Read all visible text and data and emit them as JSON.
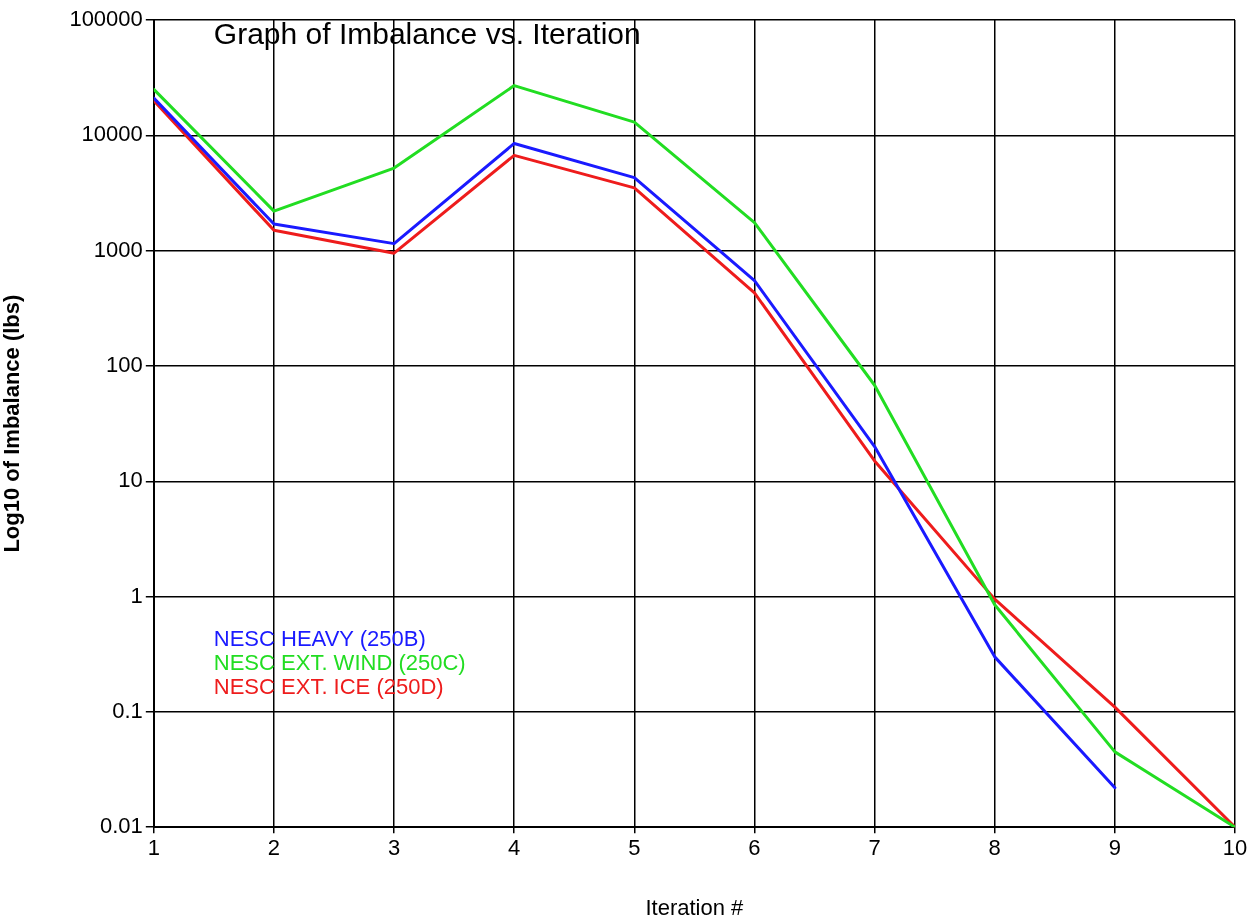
{
  "chart_data": {
    "type": "line",
    "title": "Graph of Imbalance vs. Iteration",
    "xlabel": "Iteration #",
    "ylabel": "Log10 of Imbalance (lbs)",
    "x": [
      1,
      2,
      3,
      4,
      5,
      6,
      7,
      8,
      9,
      10
    ],
    "xlim": [
      1,
      10
    ],
    "xticks": [
      1,
      2,
      3,
      4,
      5,
      6,
      7,
      8,
      9,
      10
    ],
    "ylim": [
      0.01,
      100000
    ],
    "yticks": [
      0.01,
      0.1,
      1,
      10,
      100,
      1000,
      10000,
      100000
    ],
    "log": "y",
    "grid": true,
    "legend": "bottom left",
    "marker": "none",
    "line_style": "solid",
    "series": [
      {
        "name": "NESC HEAVY (250B)",
        "color": "#1a1aff",
        "values": [
          21000,
          1700,
          1150,
          8500,
          4300,
          550,
          20,
          0.3,
          0.022,
          null
        ]
      },
      {
        "name": "NESC EXT. WIND (250C)",
        "color": "#22dd22",
        "values": [
          25000,
          2200,
          5200,
          27000,
          13000,
          1750,
          68,
          0.85,
          0.045,
          0.01
        ]
      },
      {
        "name": "NESC EXT. ICE (250D)",
        "color": "#ee1c1c",
        "values": [
          20000,
          1500,
          950,
          6700,
          3500,
          430,
          15,
          0.95,
          0.11,
          0.01
        ]
      }
    ]
  }
}
